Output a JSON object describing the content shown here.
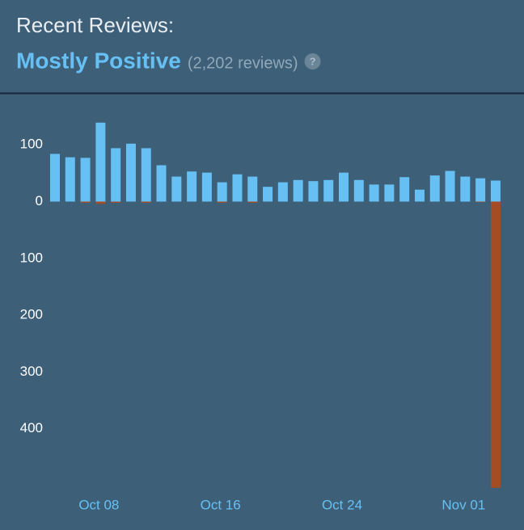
{
  "chart_data": {
    "type": "bar",
    "title": "Recent Reviews:",
    "subtitle": "Mostly Positive",
    "review_count": "(2,202 reviews)",
    "categories": [
      null,
      null,
      null,
      "Oct 08",
      null,
      null,
      null,
      null,
      null,
      null,
      null,
      "Oct 16",
      null,
      null,
      null,
      null,
      null,
      null,
      null,
      "Oct 24",
      null,
      null,
      null,
      null,
      null,
      null,
      null,
      "Nov 01",
      null,
      null
    ],
    "series": [
      {
        "color": "#66c0f4",
        "values": [
          84,
          78,
          77,
          139,
          94,
          102,
          94,
          64,
          44,
          53,
          51,
          34,
          48,
          44,
          26,
          34,
          38,
          36,
          38,
          51,
          38,
          30,
          30,
          43,
          21,
          46,
          54,
          44,
          41,
          37
        ]
      },
      {
        "color": "#a34c25",
        "values": [
          0,
          0,
          -2,
          -4,
          -2,
          0,
          -2,
          0,
          0,
          0,
          0,
          -2,
          0,
          -2,
          0,
          0,
          0,
          0,
          0,
          0,
          0,
          0,
          0,
          0,
          0,
          0,
          0,
          0,
          -1,
          -504
        ]
      }
    ],
    "ylim": [
      -510,
      170
    ],
    "yticks": [
      100,
      0,
      {
        "value": -100,
        "label": "100"
      },
      {
        "value": -200,
        "label": "200"
      },
      {
        "value": -300,
        "label": "300"
      },
      {
        "value": -400,
        "label": "400"
      }
    ],
    "grid": false
  }
}
